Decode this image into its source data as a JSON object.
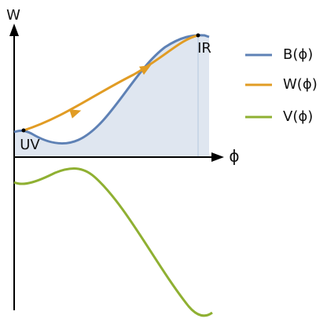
{
  "axes": {
    "y_label": "W",
    "x_label": "ϕ"
  },
  "points": [
    {
      "label": "UV"
    },
    {
      "label": "IR"
    }
  ],
  "legend": [
    {
      "label": "B(ϕ)"
    },
    {
      "label": "W(ϕ)"
    },
    {
      "label": "V(ϕ)"
    }
  ]
}
